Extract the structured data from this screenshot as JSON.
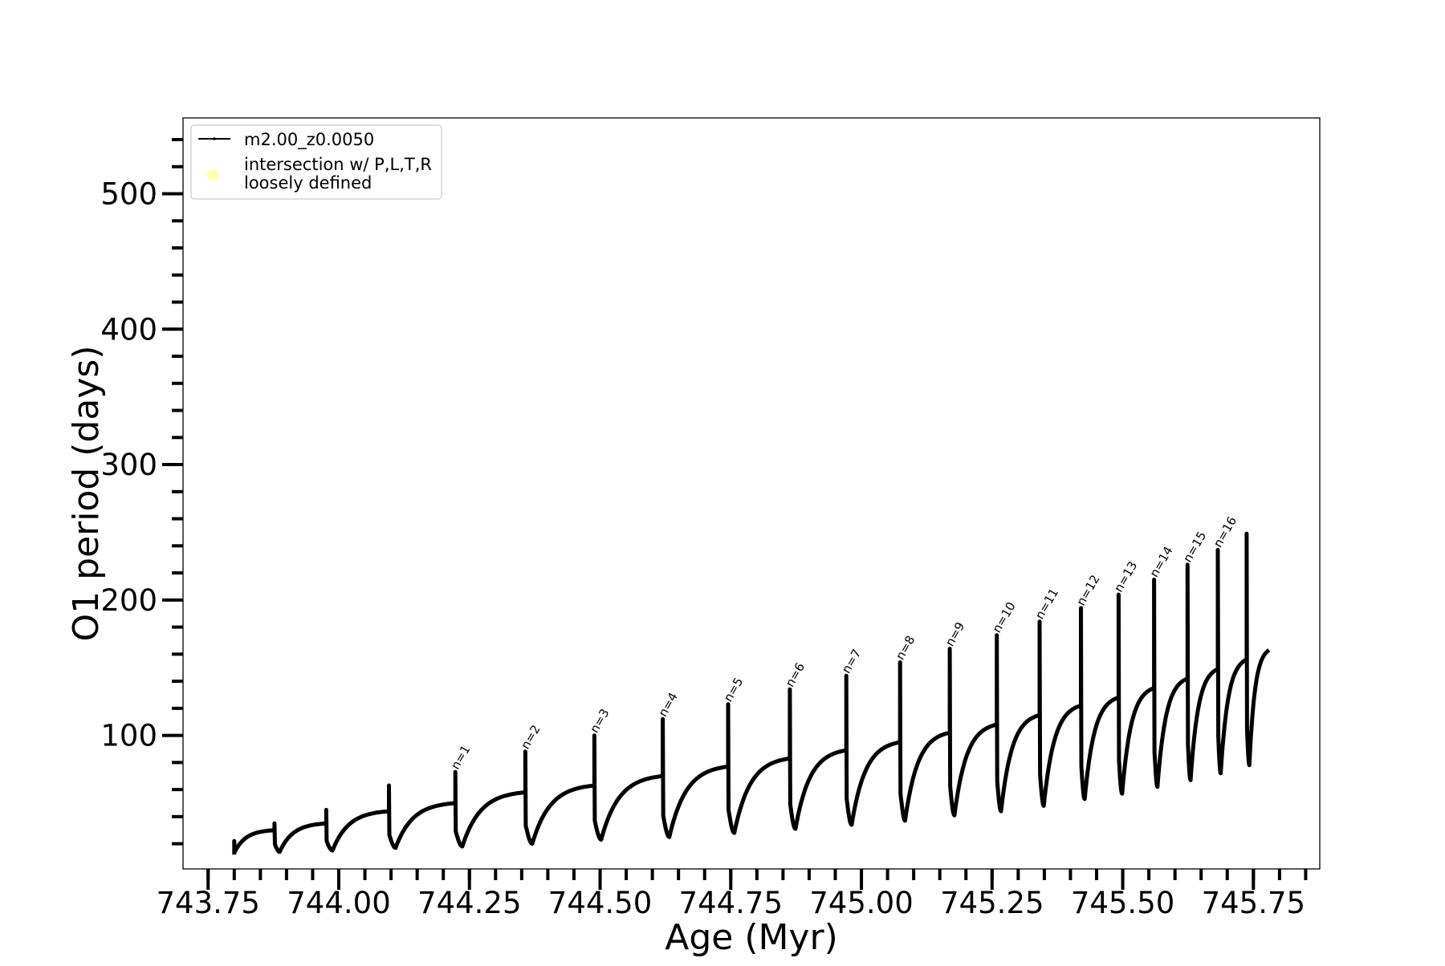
{
  "chart_data": {
    "type": "line",
    "title": "",
    "xlabel": "Age (Myr)",
    "ylabel": "O1 period (days)",
    "xlim": [
      743.702,
      745.877
    ],
    "ylim": [
      1.4,
      556
    ],
    "xticks": [
      "743.75",
      "744.00",
      "744.25",
      "744.50",
      "744.75",
      "745.00",
      "745.25",
      "745.50",
      "745.75"
    ],
    "xtick_values": [
      743.75,
      744.0,
      744.25,
      744.5,
      744.75,
      745.0,
      745.25,
      745.5,
      745.75
    ],
    "xminor_step": 0.05,
    "yticks": [
      "100",
      "200",
      "300",
      "400",
      "500"
    ],
    "ytick_values": [
      100,
      200,
      300,
      400,
      500
    ],
    "yminor_step": 20,
    "grid": false,
    "legend_placement": "top-left",
    "legend": [
      {
        "label": "m2.00_z0.0050",
        "marker": "line-with-dot",
        "color": "#000000"
      },
      {
        "label": "intersection w/ P,L,T,R\nloosely defined",
        "label_line1": "intersection w/ P,L,T,R",
        "label_line2": "loosely defined",
        "marker": "circle",
        "color": "#ffffb0"
      }
    ],
    "series": [
      {
        "name": "m2.00_z0.0050",
        "color": "#000000",
        "start": {
          "age": 743.8,
          "value": 12,
          "peak": 22,
          "min": 14
        },
        "pulses": [
          {
            "age": 743.877,
            "pre": 30,
            "peak": 35,
            "min": 14
          },
          {
            "age": 743.976,
            "pre": 35,
            "peak": 45,
            "min": 15
          },
          {
            "age": 744.096,
            "pre": 44,
            "peak": 63,
            "min": 17
          },
          {
            "age": 744.223,
            "pre": 50,
            "peak": 73,
            "min": 18,
            "label": "n=1"
          },
          {
            "age": 744.357,
            "pre": 58,
            "peak": 88,
            "min": 20,
            "label": "n=2"
          },
          {
            "age": 744.489,
            "pre": 63,
            "peak": 100,
            "min": 23,
            "label": "n=3"
          },
          {
            "age": 744.62,
            "pre": 70,
            "peak": 112,
            "min": 25,
            "label": "n=4"
          },
          {
            "age": 744.745,
            "pre": 77,
            "peak": 123,
            "min": 28,
            "label": "n=5"
          },
          {
            "age": 744.863,
            "pre": 83,
            "peak": 134,
            "min": 31,
            "label": "n=6"
          },
          {
            "age": 744.971,
            "pre": 89,
            "peak": 144,
            "min": 34,
            "label": "n=7"
          },
          {
            "age": 745.074,
            "pre": 95,
            "peak": 154,
            "min": 37,
            "label": "n=8"
          },
          {
            "age": 745.169,
            "pre": 102,
            "peak": 164,
            "min": 41,
            "label": "n=9"
          },
          {
            "age": 745.259,
            "pre": 108,
            "peak": 174,
            "min": 44,
            "label": "n=10"
          },
          {
            "age": 745.341,
            "pre": 115,
            "peak": 184,
            "min": 48,
            "label": "n=11"
          },
          {
            "age": 745.42,
            "pre": 122,
            "peak": 194,
            "min": 53,
            "label": "n=12"
          },
          {
            "age": 745.492,
            "pre": 128,
            "peak": 204,
            "min": 57,
            "label": "n=13"
          },
          {
            "age": 745.56,
            "pre": 135,
            "peak": 215,
            "min": 62,
            "label": "n=14"
          },
          {
            "age": 745.624,
            "pre": 142,
            "peak": 226,
            "min": 67,
            "label": "n=15"
          },
          {
            "age": 745.682,
            "pre": 149,
            "peak": 237,
            "min": 72,
            "label": "n=16"
          },
          {
            "age": 745.737,
            "pre": 156,
            "peak": 249,
            "min": 78
          }
        ],
        "end": {
          "age": 745.78,
          "value": 163
        }
      }
    ]
  }
}
